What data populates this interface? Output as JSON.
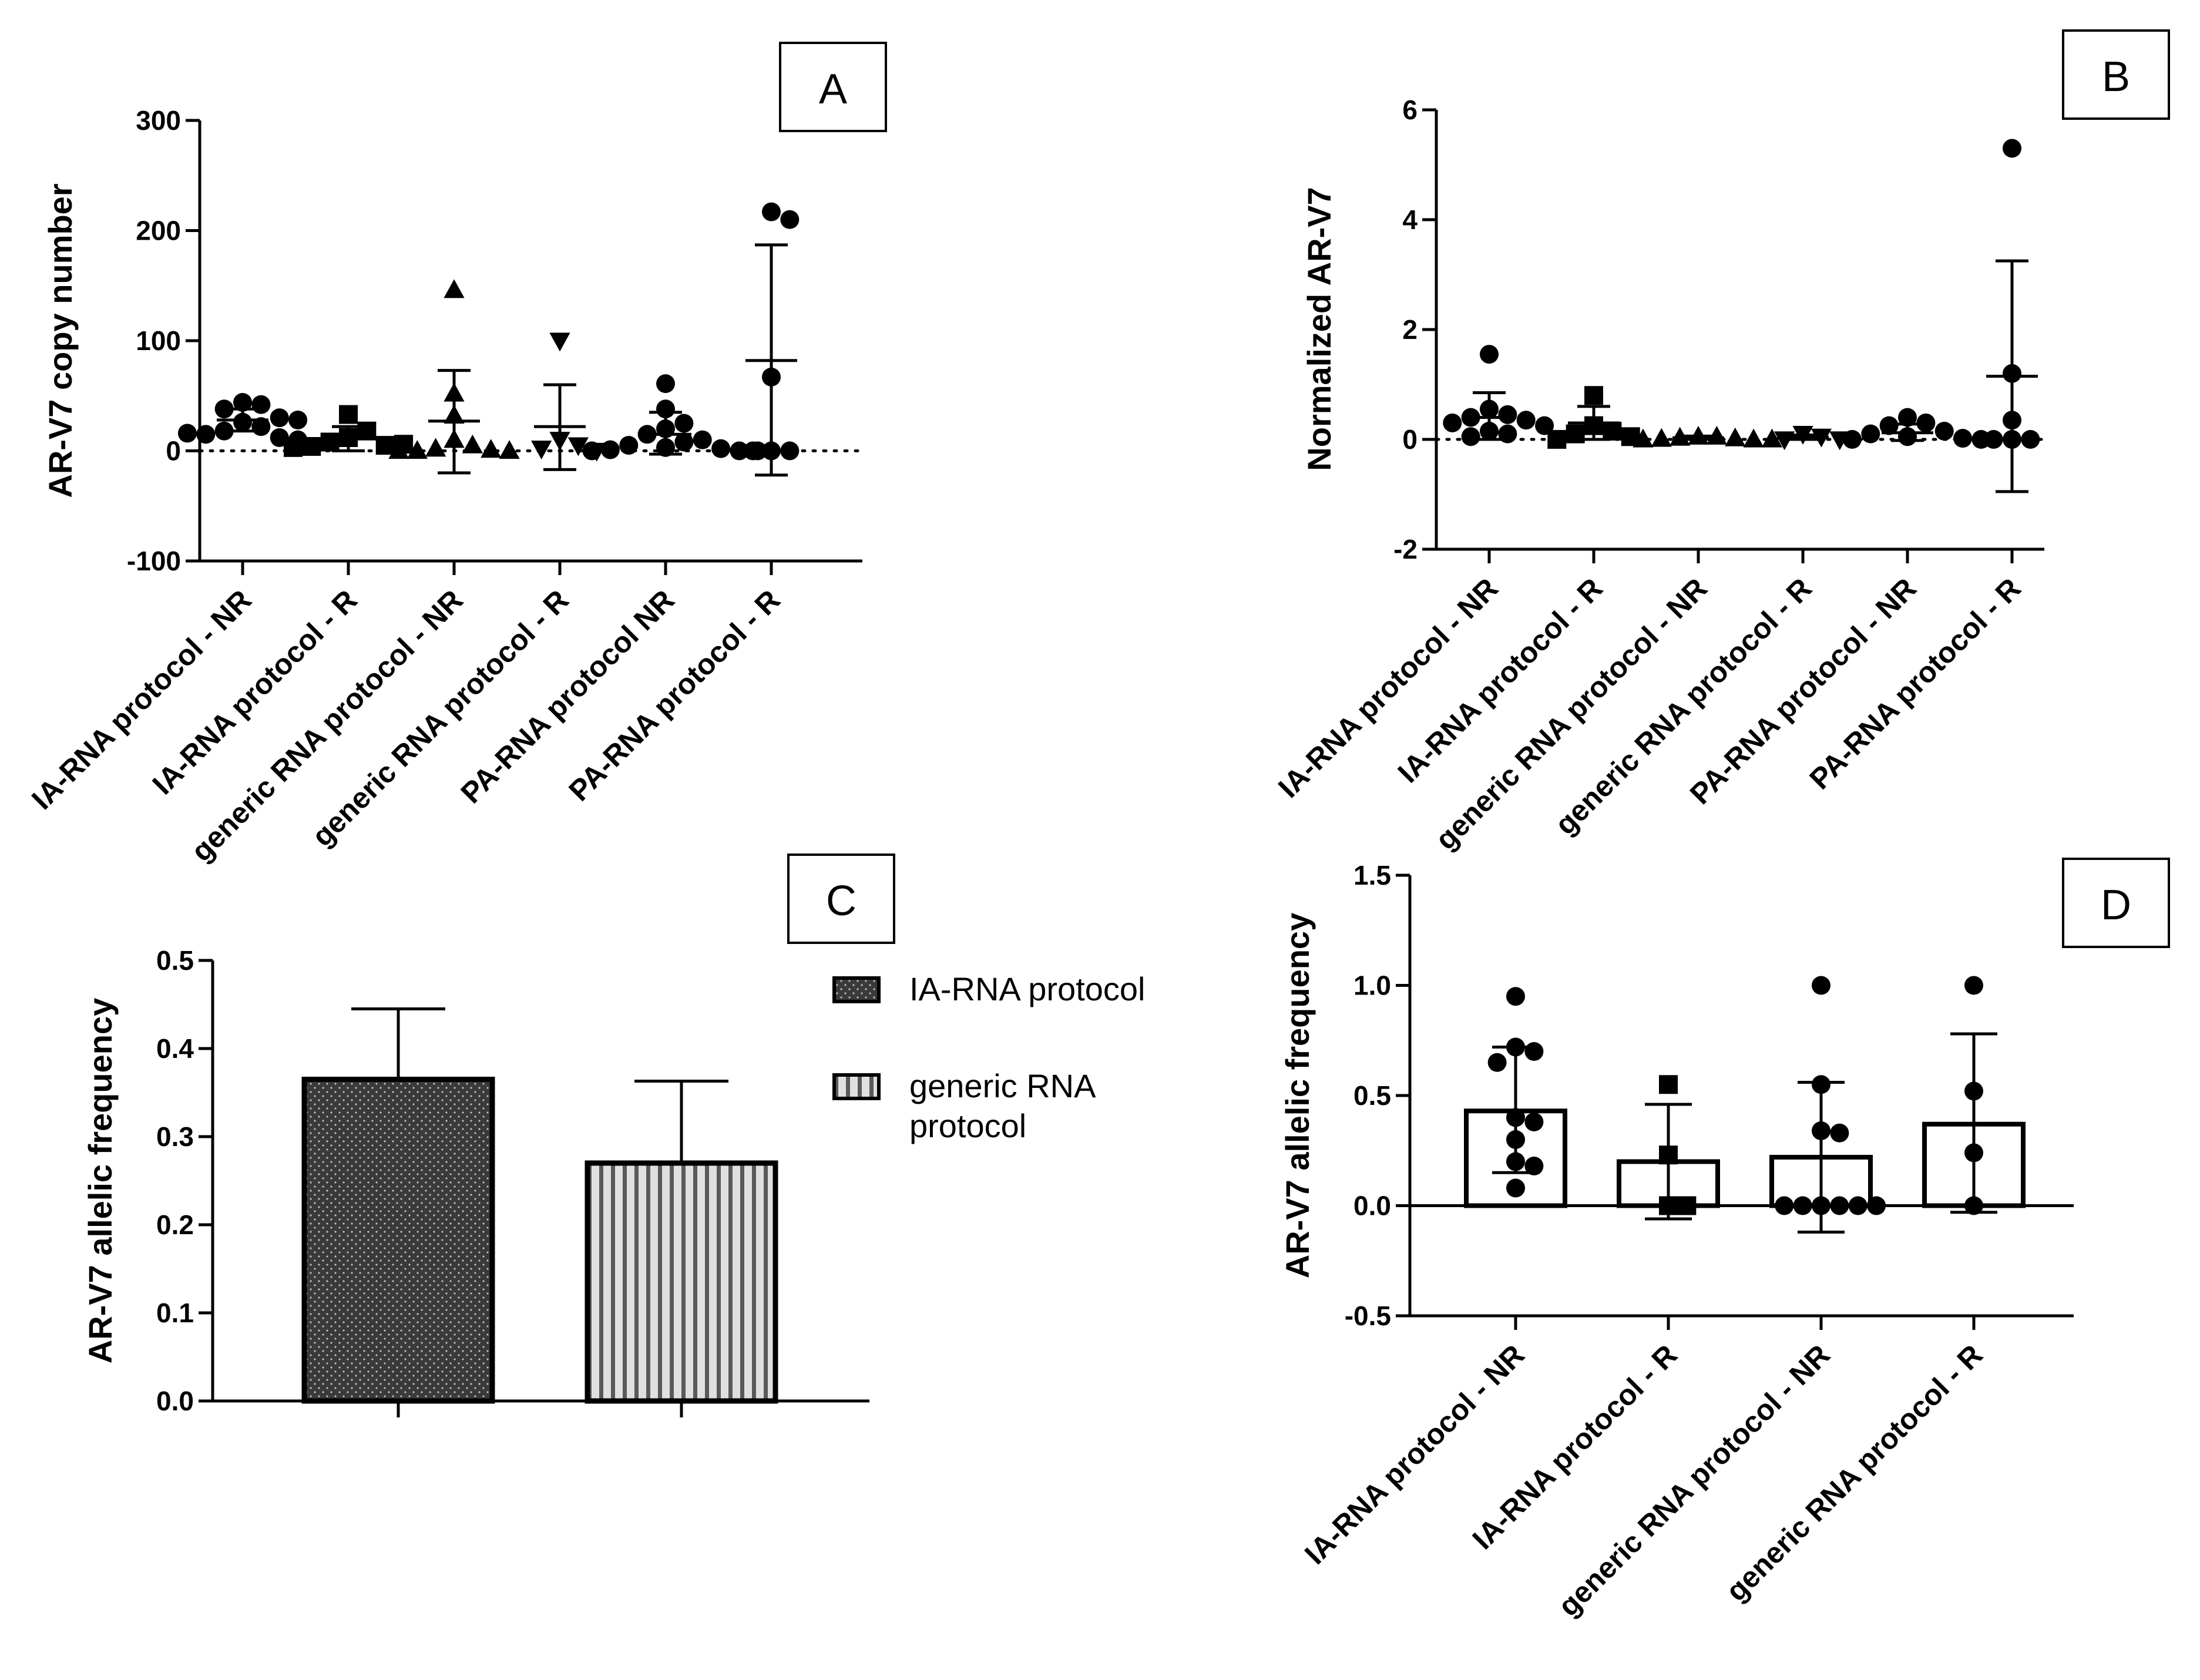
{
  "chart_data": [
    {
      "panel": "A",
      "type": "scatter",
      "ylabel": "AR-V7 copy number",
      "yticks": [
        -100,
        0,
        100,
        200,
        300
      ],
      "ylim": [
        -100,
        300
      ],
      "zero_line": "dotted",
      "categories": [
        "IA-RNA protocol - NR",
        "IA-RNA protocol - R",
        "generic RNA protocol - NR",
        "generic RNA protocol - R",
        "PA-RNA  protocol  NR",
        "PA-RNA protocol - R"
      ],
      "markers": [
        "circle",
        "square",
        "triangle-up",
        "triangle-down",
        "circle",
        "circle"
      ],
      "points": [
        [
          44,
          42,
          38,
          30,
          26,
          22,
          18,
          15,
          12,
          10,
          16,
          28
        ],
        [
          33,
          18,
          12,
          8,
          5,
          4,
          6,
          3
        ],
        [
          146,
          52,
          32,
          10,
          5,
          2,
          1,
          0,
          0,
          0
        ],
        [
          100,
          10,
          5,
          2,
          0
        ],
        [
          61,
          38,
          25,
          20,
          15,
          10,
          8,
          5,
          3,
          2,
          1,
          0,
          0,
          0
        ],
        [
          217,
          210,
          67,
          0,
          0,
          0
        ]
      ],
      "mean": [
        28,
        11,
        27,
        22,
        15,
        82
      ],
      "err_upper": [
        38,
        22,
        73,
        60,
        35,
        187
      ],
      "err_lower": [
        18,
        0,
        -20,
        -17,
        -3,
        -22
      ]
    },
    {
      "panel": "B",
      "type": "scatter",
      "ylabel": "Normalized AR-V7",
      "yticks": [
        -2,
        0,
        2,
        4,
        6
      ],
      "ylim": [
        -2,
        6
      ],
      "zero_line": "dotted",
      "categories": [
        "IA-RNA protocol - NR",
        "IA-RNA protocol - R",
        "generic RNA protocol - NR",
        "generic RNA protocol - R",
        "PA-RNA protocol - NR",
        "PA-RNA protocol - R"
      ],
      "markers": [
        "circle",
        "square",
        "triangle-up",
        "triangle-down",
        "circle",
        "circle"
      ],
      "points": [
        [
          1.55,
          0.55,
          0.45,
          0.4,
          0.35,
          0.3,
          0.25,
          0.15,
          0.1,
          0.05
        ],
        [
          0.8,
          0.25,
          0.15,
          0.1,
          0.05,
          0.0
        ],
        [
          0.05,
          0.05,
          0.03,
          0.02,
          0.01,
          0.0,
          0.0,
          0.0
        ],
        [
          0.1,
          0.05,
          0.0,
          0.0
        ],
        [
          0.4,
          0.3,
          0.25,
          0.15,
          0.1,
          0.05,
          0.02,
          0.0,
          0.0
        ],
        [
          5.3,
          1.2,
          0.35,
          0.0,
          0.0,
          0.0
        ]
      ],
      "mean": [
        0.4,
        0.3,
        0.03,
        0.04,
        0.12,
        1.15
      ],
      "err_upper": [
        0.85,
        0.6,
        0.06,
        0.08,
        0.28,
        3.25
      ],
      "err_lower": [
        0.0,
        0.0,
        0.0,
        0.0,
        -0.02,
        -0.95
      ]
    },
    {
      "panel": "C",
      "type": "bar",
      "ylabel": "AR-V7 allelic frequency",
      "yticks": [
        0.0,
        0.1,
        0.2,
        0.3,
        0.4,
        0.5
      ],
      "ylim": [
        0.0,
        0.5
      ],
      "series": [
        {
          "name": "IA-RNA protocol",
          "value": 0.365,
          "err_upper": 0.445,
          "pattern": "dots"
        },
        {
          "name": "generic RNA protocol",
          "value": 0.27,
          "err_upper": 0.363,
          "pattern": "stripes"
        }
      ],
      "legend_lines": [
        [
          "IA-RNA protocol"
        ],
        [
          "generic RNA",
          "protocol"
        ]
      ],
      "legend": "right"
    },
    {
      "panel": "D",
      "type": "bar",
      "ylabel": "AR-V7 allelic frequency",
      "yticks": [
        -0.5,
        0.0,
        0.5,
        1.0,
        1.5
      ],
      "ylim": [
        -0.5,
        1.5
      ],
      "categories": [
        "IA-RNA protocol - NR",
        "IA-RNA protocol - R",
        "generic RNA protocol - NR",
        "generic RNA protocol - R"
      ],
      "markers": [
        "circle",
        "square",
        "circle",
        "circle"
      ],
      "values": [
        0.43,
        0.2,
        0.22,
        0.37
      ],
      "err_upper": [
        0.72,
        0.46,
        0.56,
        0.78
      ],
      "err_lower": [
        0.15,
        -0.06,
        -0.12,
        -0.03
      ],
      "points": [
        [
          0.95,
          0.72,
          0.7,
          0.65,
          0.4,
          0.38,
          0.3,
          0.2,
          0.18,
          0.08
        ],
        [
          0.55,
          0.23,
          0.0,
          0.0
        ],
        [
          1.0,
          0.55,
          0.34,
          0.33,
          0.0,
          0.0,
          0.0,
          0.0,
          0.0,
          0.0
        ],
        [
          1.0,
          0.52,
          0.24,
          0.0
        ]
      ]
    }
  ]
}
